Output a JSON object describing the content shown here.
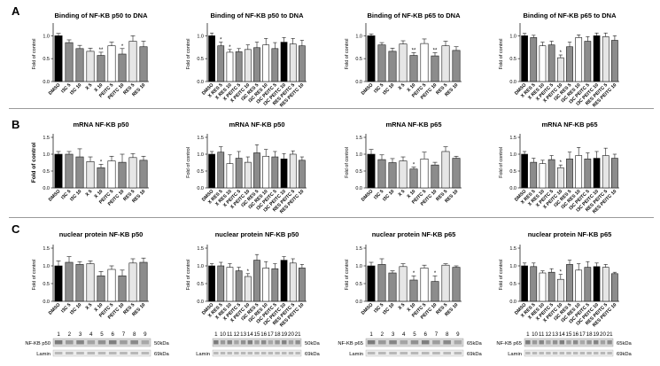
{
  "colors": {
    "dark": "#000000",
    "mid": "#8c8c8c",
    "light": "#e6e6e6",
    "white": "#ffffff",
    "axis": "#222222",
    "separator": "#9a9a9a"
  },
  "rows": [
    {
      "letter": "A",
      "ylabel": "Fold of control"
    },
    {
      "letter": "B",
      "ylabel": "Fold of control"
    },
    {
      "letter": "C",
      "ylabel": "Fold of control"
    }
  ],
  "chart_data": [
    {
      "type": "bar",
      "title": "Binding of  NF-KB p50 to DNA",
      "ylabel": "Fold of control",
      "yticks": [
        "0.0",
        "0.5",
        "1.0"
      ],
      "ylim": [
        0,
        1.2
      ],
      "categories": [
        "DMSO",
        "I3C 5",
        "I3C 10",
        "X 5",
        "X 10",
        "PEITC 5",
        "PEITC 10",
        "RES 5",
        "RES 10"
      ],
      "values": [
        1.0,
        0.85,
        0.72,
        0.66,
        0.57,
        0.78,
        0.6,
        0.88,
        0.76
      ],
      "errors": [
        0.05,
        0.06,
        0.07,
        0.07,
        0.07,
        0.08,
        0.12,
        0.12,
        0.12
      ],
      "shades": [
        "dark",
        "mid",
        "mid",
        "light",
        "mid",
        "white",
        "mid",
        "light",
        "mid"
      ],
      "marks": [
        "",
        "",
        "",
        "",
        "**",
        "",
        "*",
        "",
        ""
      ]
    },
    {
      "type": "bar",
      "title": "Binding of NF-KB p50 to DNA",
      "ylabel": "Fold of control",
      "yticks": [
        "0.0",
        "0.5",
        "1.0"
      ],
      "ylim": [
        0,
        1.2
      ],
      "categories": [
        "DMSO",
        "X RES 5",
        "X RES 10",
        "X PEITC 5",
        "X PEITC 10",
        "I3C RES 5",
        "I3C RES 10",
        "I3C PEITC 5",
        "I3C PEITC 10",
        "RES PEITC 5",
        "RES PEITC 10"
      ],
      "values": [
        1.0,
        0.78,
        0.64,
        0.65,
        0.7,
        0.74,
        0.8,
        0.72,
        0.86,
        0.82,
        0.78
      ],
      "errors": [
        0.06,
        0.08,
        0.06,
        0.07,
        0.1,
        0.12,
        0.14,
        0.13,
        0.1,
        0.12,
        0.12
      ],
      "shades": [
        "dark",
        "mid",
        "white",
        "mid",
        "light",
        "mid",
        "white",
        "mid",
        "dark",
        "light",
        "mid"
      ],
      "marks": [
        "",
        "*",
        "*",
        "",
        "",
        "",
        "",
        "",
        "",
        "",
        ""
      ]
    },
    {
      "type": "bar",
      "title": "Binding of NF-KB p65 to DNA",
      "ylabel": "Fold of control",
      "yticks": [
        "0.0",
        "0.5",
        "1.0"
      ],
      "ylim": [
        0,
        1.2
      ],
      "categories": [
        "DMSO",
        "I3C 5",
        "I3C 10",
        "X 5",
        "X 10",
        "PEITC 5",
        "PEITC 10",
        "RES 5",
        "RES 10"
      ],
      "values": [
        1.0,
        0.8,
        0.66,
        0.82,
        0.57,
        0.83,
        0.56,
        0.78,
        0.68
      ],
      "errors": [
        0.04,
        0.05,
        0.07,
        0.07,
        0.06,
        0.1,
        0.07,
        0.1,
        0.08
      ],
      "shades": [
        "dark",
        "mid",
        "mid",
        "light",
        "mid",
        "white",
        "mid",
        "light",
        "mid"
      ],
      "marks": [
        "",
        "",
        "",
        "",
        "**",
        "",
        "**",
        "",
        ""
      ]
    },
    {
      "type": "bar",
      "title": "Binding of NF-KB p65 to DNA",
      "ylabel": "Fold of control",
      "yticks": [
        "0.0",
        "0.5",
        "1.0"
      ],
      "ylim": [
        0,
        1.2
      ],
      "categories": [
        "DMSO",
        "X RES 5",
        "X RES 10",
        "X PEITC 5",
        "X PEITC 10",
        "I3C RES 5",
        "I3C RES 10",
        "I3C PEITC 5",
        "I3C PEITC 10",
        "RES PEITC 5",
        "RES PEITC 10"
      ],
      "values": [
        1.0,
        0.96,
        0.78,
        0.8,
        0.52,
        0.76,
        0.96,
        0.88,
        1.0,
        0.98,
        0.9
      ],
      "errors": [
        0.05,
        0.05,
        0.08,
        0.08,
        0.06,
        0.1,
        0.06,
        0.1,
        0.06,
        0.08,
        0.1
      ],
      "shades": [
        "dark",
        "mid",
        "white",
        "mid",
        "light",
        "mid",
        "white",
        "mid",
        "dark",
        "light",
        "mid"
      ],
      "marks": [
        "",
        "",
        "",
        "",
        "*",
        "",
        "",
        "",
        "",
        "",
        ""
      ]
    },
    {
      "type": "bar",
      "title": "mRNA NF-KB p50",
      "ylabel": "Fold of control",
      "yticks": [
        "0.0",
        "0.5",
        "1.0",
        "1.5"
      ],
      "ylim": [
        0,
        1.5
      ],
      "categories": [
        "DMSO",
        "I3C 5",
        "I3C 10",
        "X 5",
        "X 10",
        "PEITC 5",
        "PEITC 10",
        "RES 5",
        "RES 10"
      ],
      "values": [
        1.0,
        1.0,
        0.92,
        0.78,
        0.6,
        0.8,
        0.76,
        0.9,
        0.82
      ],
      "errors": [
        0.08,
        0.08,
        0.24,
        0.14,
        0.1,
        0.14,
        0.24,
        0.12,
        0.12
      ],
      "shades": [
        "dark",
        "mid",
        "mid",
        "light",
        "mid",
        "white",
        "mid",
        "light",
        "mid"
      ],
      "marks": [
        "",
        "",
        "",
        "",
        "*",
        "",
        "",
        "",
        ""
      ]
    },
    {
      "type": "bar",
      "title": "mRNA NF-KB p50",
      "ylabel": "Fold of control",
      "yticks": [
        "0.0",
        "0.5",
        "1.0",
        "1.5"
      ],
      "ylim": [
        0,
        1.5
      ],
      "categories": [
        "DMSO",
        "X RES 5",
        "X RES 10",
        "X PEITC 5",
        "X PEITC 10",
        "I3C RES 5",
        "I3C RES 10",
        "I3C PEITC 5",
        "I3C PEITC 10",
        "RES PEITC 5",
        "RES PEITC 10"
      ],
      "values": [
        1.0,
        1.06,
        0.72,
        0.88,
        0.76,
        1.04,
        0.94,
        0.92,
        0.86,
        1.0,
        0.82
      ],
      "errors": [
        0.08,
        0.16,
        0.26,
        0.2,
        0.16,
        0.24,
        0.2,
        0.16,
        0.16,
        0.1,
        0.1
      ],
      "shades": [
        "dark",
        "mid",
        "white",
        "mid",
        "light",
        "mid",
        "white",
        "mid",
        "dark",
        "light",
        "mid"
      ],
      "marks": [
        "",
        "",
        "",
        "",
        "",
        "",
        "",
        "",
        "",
        "",
        ""
      ]
    },
    {
      "type": "bar",
      "title": "mRNA NF-KB p65",
      "ylabel": "Fold of control",
      "yticks": [
        "0.0",
        "0.5",
        "1.0",
        "1.5"
      ],
      "ylim": [
        0,
        1.5
      ],
      "categories": [
        "DMSO",
        "I3C 5",
        "I3C 10",
        "X 5",
        "X 10",
        "PEITC 5",
        "PEITC 10",
        "RES 5",
        "RES 10"
      ],
      "values": [
        1.0,
        0.84,
        0.75,
        0.8,
        0.56,
        0.86,
        0.68,
        1.08,
        0.88
      ],
      "errors": [
        0.14,
        0.14,
        0.12,
        0.12,
        0.06,
        0.2,
        0.08,
        0.14,
        0.06
      ],
      "shades": [
        "dark",
        "mid",
        "mid",
        "light",
        "mid",
        "white",
        "mid",
        "light",
        "mid"
      ],
      "marks": [
        "",
        "",
        "",
        "",
        "*",
        "",
        "",
        "",
        ""
      ]
    },
    {
      "type": "bar",
      "title": "mRNA NF-KB p65",
      "ylabel": "Fold of control",
      "yticks": [
        "0.0",
        "0.5",
        "1.0",
        "1.5"
      ],
      "ylim": [
        0,
        1.5
      ],
      "categories": [
        "DMSO",
        "X RES 5",
        "X RES 10",
        "X PEITC 5",
        "X PEITC 10",
        "I3C RES 5",
        "I3C RES 10",
        "I3C PEITC 5",
        "I3C PEITC 10",
        "RES PEITC 5",
        "RES PEITC 10"
      ],
      "values": [
        1.0,
        0.76,
        0.72,
        0.84,
        0.6,
        0.86,
        0.96,
        0.86,
        0.88,
        0.96,
        0.88
      ],
      "errors": [
        0.08,
        0.12,
        0.1,
        0.12,
        0.08,
        0.2,
        0.24,
        0.18,
        0.2,
        0.22,
        0.12
      ],
      "shades": [
        "dark",
        "mid",
        "white",
        "mid",
        "light",
        "mid",
        "white",
        "mid",
        "dark",
        "light",
        "mid"
      ],
      "marks": [
        "",
        "",
        "",
        "",
        "*",
        "",
        "",
        "",
        "",
        "",
        ""
      ]
    },
    {
      "type": "bar",
      "title": "nuclear protein NF-KB p50",
      "ylabel": "Fold of control",
      "yticks": [
        "0.0",
        "0.5",
        "1.0",
        "1.5"
      ],
      "ylim": [
        0,
        1.5
      ],
      "categories": [
        "DMSO",
        "I3C 5",
        "I3C 10",
        "X 5",
        "X 10",
        "PEITC 5",
        "PEITC 10",
        "RES 5",
        "RES 10"
      ],
      "values": [
        1.0,
        1.1,
        1.04,
        1.06,
        0.72,
        0.9,
        0.72,
        1.08,
        1.1
      ],
      "errors": [
        0.14,
        0.16,
        0.08,
        0.08,
        0.12,
        0.1,
        0.16,
        0.12,
        0.12
      ],
      "shades": [
        "dark",
        "mid",
        "mid",
        "light",
        "mid",
        "white",
        "mid",
        "light",
        "mid"
      ],
      "marks": [
        "",
        "",
        "",
        "",
        "",
        "",
        "",
        "",
        ""
      ]
    },
    {
      "type": "bar",
      "title": "nuclear protein NF-KB p50",
      "ylabel": "Fold of control",
      "yticks": [
        "0.0",
        "0.5",
        "1.0",
        "1.5"
      ],
      "ylim": [
        0,
        1.5
      ],
      "categories": [
        "DMSO",
        "X RES 5",
        "X RES 10",
        "X PEITC 5",
        "X PEITC 10",
        "I3C RES 5",
        "I3C RES 10",
        "I3C PEITC 5",
        "I3C PEITC 10",
        "RES PEITC 5",
        "RES PEITC 10"
      ],
      "values": [
        1.0,
        1.0,
        0.96,
        0.86,
        0.7,
        1.16,
        0.94,
        0.92,
        1.16,
        1.08,
        0.94
      ],
      "errors": [
        0.06,
        0.1,
        0.1,
        0.1,
        0.08,
        0.16,
        0.18,
        0.14,
        0.1,
        0.12,
        0.1
      ],
      "shades": [
        "dark",
        "mid",
        "white",
        "mid",
        "light",
        "mid",
        "white",
        "mid",
        "dark",
        "light",
        "mid"
      ],
      "marks": [
        "",
        "",
        "",
        "",
        "*",
        "",
        "",
        "",
        "",
        "",
        ""
      ]
    },
    {
      "type": "bar",
      "title": "nuclear protein NF-KB p65",
      "ylabel": "Fold of control",
      "yticks": [
        "0.0",
        "0.5",
        "1.0",
        "1.5"
      ],
      "ylim": [
        0,
        1.5
      ],
      "categories": [
        "DMSO",
        "I3C 5",
        "I3C 10",
        "X 5",
        "X 10",
        "PEITC 5",
        "PEITC 10",
        "RES 5",
        "RES 10"
      ],
      "values": [
        1.0,
        1.04,
        0.8,
        0.98,
        0.6,
        0.94,
        0.56,
        1.02,
        0.96
      ],
      "errors": [
        0.1,
        0.16,
        0.06,
        0.08,
        0.12,
        0.08,
        0.16,
        0.04,
        0.04
      ],
      "shades": [
        "dark",
        "mid",
        "mid",
        "light",
        "mid",
        "white",
        "mid",
        "light",
        "mid"
      ],
      "marks": [
        "",
        "",
        "",
        "",
        "*",
        "",
        "*",
        "",
        ""
      ]
    },
    {
      "type": "bar",
      "title": "nuclear protein NF-KB p65",
      "ylabel": "Fold of control",
      "yticks": [
        "0.0",
        "0.5",
        "1.0",
        "1.5"
      ],
      "ylim": [
        0,
        1.5
      ],
      "categories": [
        "DMSO",
        "X RES 5",
        "X RES 10",
        "X PEITC 5",
        "X PEITC 10",
        "I3C RES 5",
        "I3C RES 10",
        "I3C PEITC 5",
        "I3C PEITC 10",
        "RES PEITC 5",
        "RES PEITC 10"
      ],
      "values": [
        1.0,
        0.98,
        0.8,
        0.82,
        0.62,
        1.04,
        0.88,
        0.96,
        0.98,
        0.96,
        0.78
      ],
      "errors": [
        0.08,
        0.1,
        0.06,
        0.1,
        0.14,
        0.12,
        0.18,
        0.16,
        0.1,
        0.08,
        0.04
      ],
      "shades": [
        "dark",
        "mid",
        "white",
        "mid",
        "light",
        "mid",
        "white",
        "mid",
        "dark",
        "light",
        "mid"
      ],
      "marks": [
        "",
        "",
        "",
        "",
        "*",
        "",
        "",
        "",
        "",
        "",
        ""
      ]
    }
  ],
  "blots": [
    {
      "lane_numbers": [
        "1",
        "2",
        "3",
        "4",
        "5",
        "6",
        "7",
        "8",
        "9"
      ],
      "target_label": "NF-KB p50",
      "target_kda": "50kDa",
      "control_label": "Lamin",
      "control_kda": "69kDa"
    },
    {
      "lane_numbers": [
        "1",
        "10",
        "11",
        "12",
        "13",
        "14",
        "15",
        "16",
        "17",
        "18",
        "19",
        "20",
        "21"
      ],
      "target_label": "",
      "target_kda": "50kDa",
      "control_label": "Lamin",
      "control_kda": "69kDa"
    },
    {
      "lane_numbers": [
        "1",
        "2",
        "3",
        "4",
        "5",
        "6",
        "7",
        "8",
        "9"
      ],
      "target_label": "NF-KB p65",
      "target_kda": "65kDa",
      "control_label": "Lamin",
      "control_kda": "69kDa"
    },
    {
      "lane_numbers": [
        "1",
        "10",
        "11",
        "12",
        "13",
        "14",
        "15",
        "16",
        "17",
        "18",
        "19",
        "20",
        "21"
      ],
      "target_label": "NF-KB p65",
      "target_kda": "65kDa",
      "control_label": "Lamin",
      "control_kda": "69kDa"
    }
  ]
}
